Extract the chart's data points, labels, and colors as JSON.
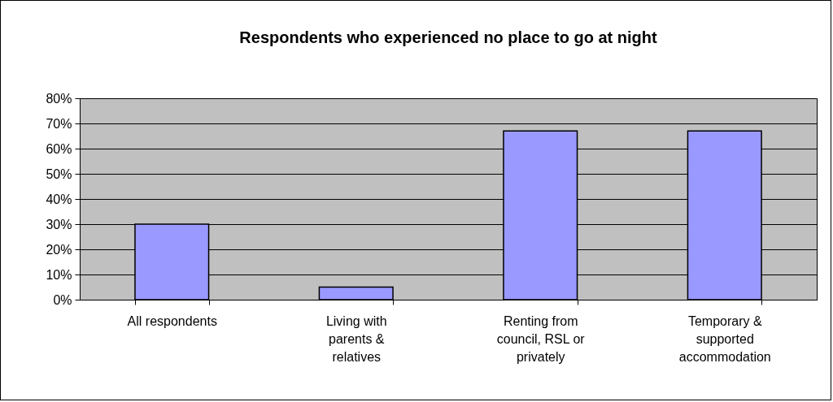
{
  "chart_data": {
    "type": "bar",
    "title": "Respondents who experienced no place to go at night",
    "categories": [
      "All respondents",
      "Living with parents & relatives",
      "Renting from council, RSL or privately",
      "Temporary & supported accommodation"
    ],
    "values": [
      30,
      5,
      67,
      67
    ],
    "color": "#9999ff",
    "ylim": [
      0,
      80
    ],
    "yticks": [
      {
        "value": 0,
        "label": "0%"
      },
      {
        "value": 10,
        "label": "10%"
      },
      {
        "value": 20,
        "label": "20%"
      },
      {
        "value": 30,
        "label": "30%"
      },
      {
        "value": 40,
        "label": "40%"
      },
      {
        "value": 50,
        "label": "50%"
      },
      {
        "value": 60,
        "label": "60%"
      },
      {
        "value": 70,
        "label": "70%"
      },
      {
        "value": 80,
        "label": "80%"
      }
    ],
    "grid": "y"
  }
}
